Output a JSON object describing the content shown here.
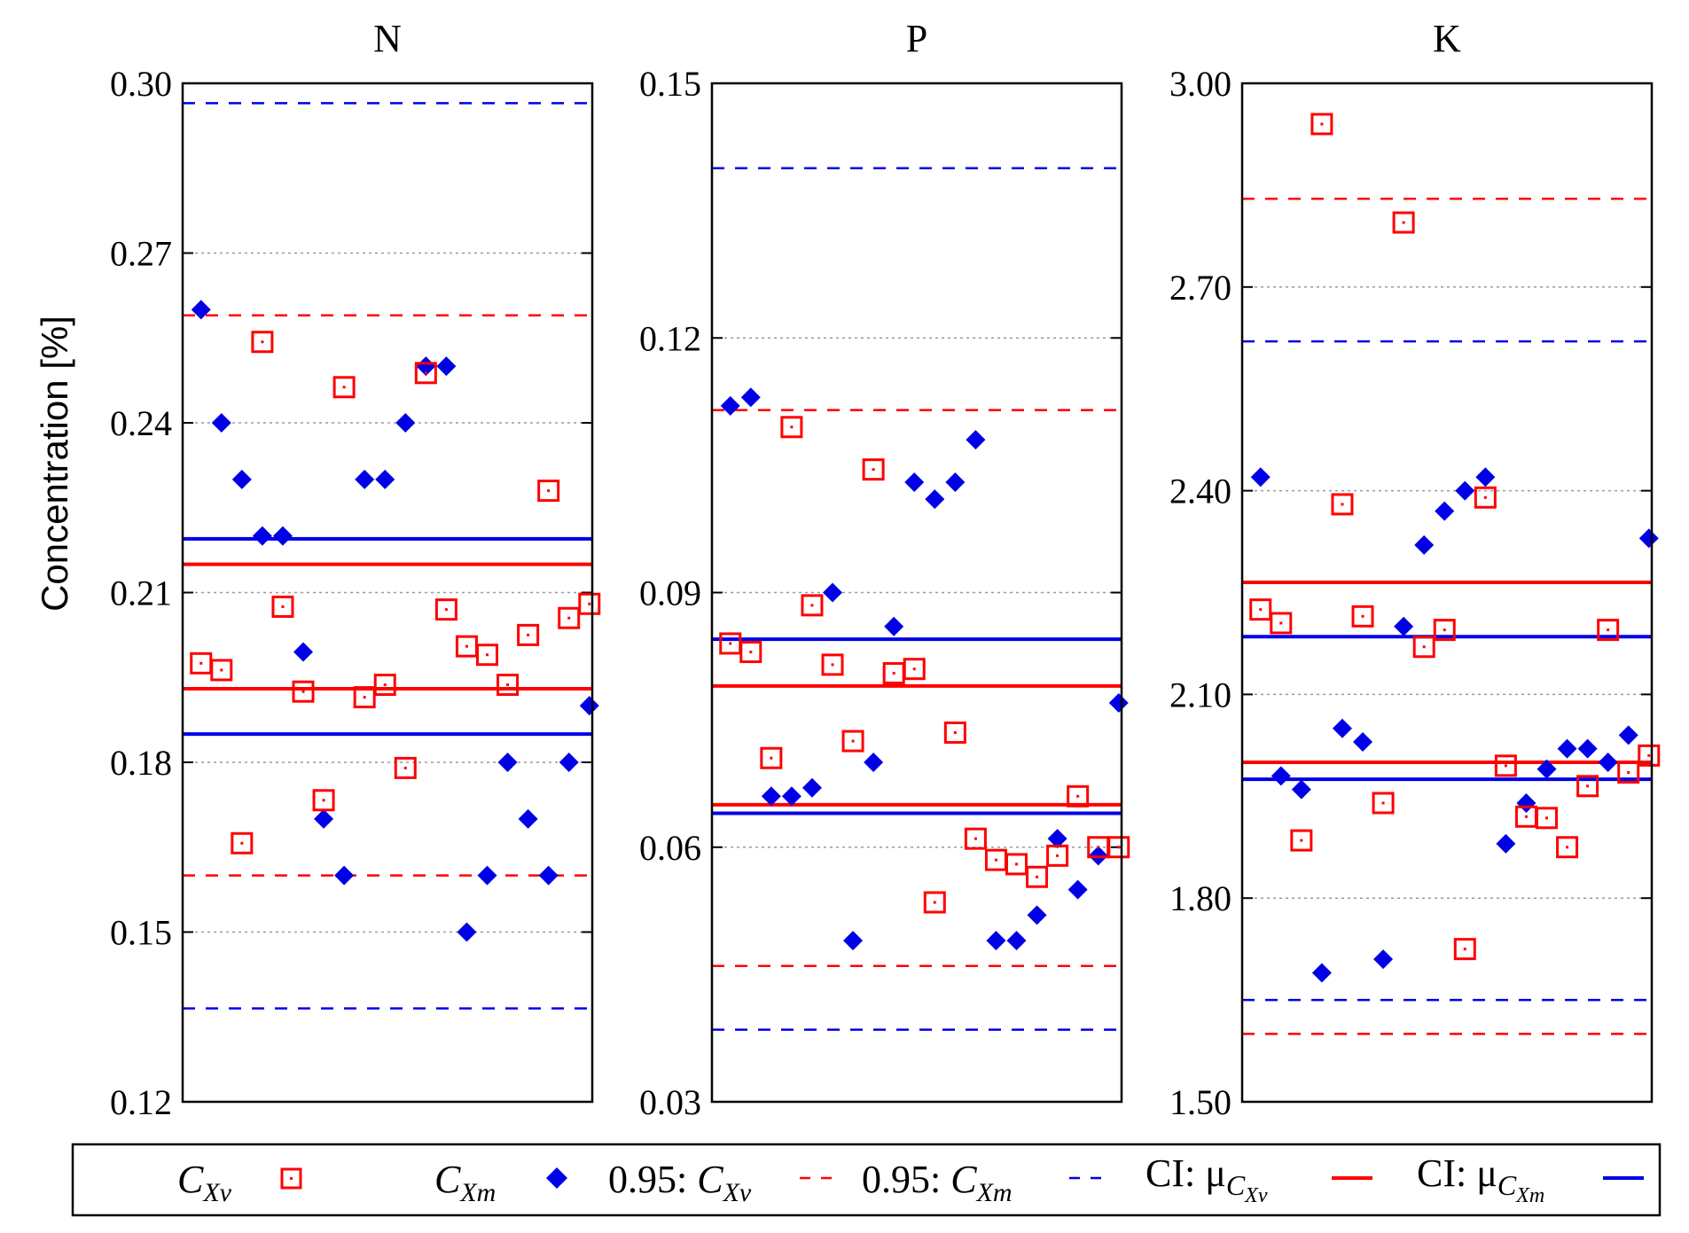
{
  "colors": {
    "red": "#ff0000",
    "blue": "#0000e6",
    "grid": "#9a9a9a",
    "axis": "#000000"
  },
  "ylabel": "Concentration [%]",
  "legend": {
    "items": [
      {
        "id": "cxv",
        "main": "C",
        "sub": "Xv",
        "marker": "square-red"
      },
      {
        "id": "cxm",
        "main": "C",
        "sub": "Xm",
        "marker": "diamond-blue"
      },
      {
        "id": "ci95_xv",
        "prefix": "0.95: ",
        "main": "C",
        "sub": "Xv",
        "marker": "dashed-red"
      },
      {
        "id": "ci95_xm",
        "prefix": "0.95: ",
        "main": "C",
        "sub": "Xm",
        "marker": "dashed-blue"
      },
      {
        "id": "ci_mu_xv",
        "prefix": "CI: ",
        "main": "μ",
        "sub": "C",
        "subsub": "Xv",
        "marker": "solid-red"
      },
      {
        "id": "ci_mu_xm",
        "prefix": "CI: ",
        "main": "μ",
        "sub": "C",
        "subsub": "Xm",
        "marker": "solid-blue"
      }
    ]
  },
  "chart_data": [
    {
      "type": "scatter",
      "title": "N",
      "ylim": [
        0.12,
        0.3
      ],
      "yticks": [
        0.12,
        0.15,
        0.18,
        0.21,
        0.24,
        0.27,
        0.3
      ],
      "ytick_labels": [
        "0.12",
        "0.15",
        "0.18",
        "0.21",
        "0.24",
        "0.27",
        "0.30"
      ],
      "grid": true,
      "n_points": 20,
      "series": [
        {
          "name": "C_Xv",
          "values": [
            0.1975,
            0.1963,
            0.1657,
            0.2543,
            0.2075,
            0.1925,
            0.1733,
            0.2463,
            0.1915,
            0.1937,
            0.179,
            0.2488,
            0.207,
            0.2005,
            0.199,
            0.1937,
            0.2025,
            0.228,
            0.2055,
            0.208
          ]
        },
        {
          "name": "C_Xm",
          "values": [
            0.26,
            0.24,
            0.23,
            0.22,
            0.22,
            0.1995,
            0.17,
            0.16,
            0.23,
            0.23,
            0.24,
            0.25,
            0.25,
            0.15,
            0.16,
            0.18,
            0.17,
            0.16,
            0.18,
            0.19
          ]
        }
      ],
      "lines": {
        "ci95_xv": [
          0.16,
          0.259
        ],
        "ci95_xm": [
          0.1365,
          0.2965
        ],
        "ci_mu_xv": [
          0.193,
          0.215
        ],
        "ci_mu_xm": [
          0.185,
          0.2195
        ]
      }
    },
    {
      "type": "scatter",
      "title": "P",
      "ylim": [
        0.03,
        0.15
      ],
      "yticks": [
        0.03,
        0.06,
        0.09,
        0.12,
        0.15
      ],
      "ytick_labels": [
        "0.03",
        "0.06",
        "0.09",
        "0.12",
        "0.15"
      ],
      "grid": true,
      "n_points": 20,
      "series": [
        {
          "name": "C_Xv",
          "values": [
            0.084,
            0.083,
            0.0705,
            0.1095,
            0.0885,
            0.0815,
            0.0725,
            0.1045,
            0.0805,
            0.081,
            0.0535,
            0.0735,
            0.061,
            0.0585,
            0.058,
            0.0565,
            0.059,
            0.066,
            0.06,
            0.06
          ]
        },
        {
          "name": "C_Xm",
          "values": [
            0.112,
            0.113,
            0.066,
            0.066,
            0.067,
            0.09,
            0.049,
            0.07,
            0.086,
            0.103,
            0.101,
            0.103,
            0.108,
            0.049,
            0.049,
            0.052,
            0.061,
            0.055,
            0.059,
            0.077
          ]
        }
      ],
      "lines": {
        "ci95_xv": [
          0.046,
          0.1115
        ],
        "ci95_xm": [
          0.0385,
          0.14
        ],
        "ci_mu_xv": [
          0.065,
          0.079
        ],
        "ci_mu_xm": [
          0.064,
          0.0845
        ]
      }
    },
    {
      "type": "scatter",
      "title": "K",
      "ylim": [
        1.5,
        3.0
      ],
      "yticks": [
        1.5,
        1.8,
        2.1,
        2.4,
        2.7,
        3.0
      ],
      "ytick_labels": [
        "1.50",
        "1.80",
        "2.10",
        "2.40",
        "2.70",
        "3.00"
      ],
      "grid": true,
      "n_points": 20,
      "series": [
        {
          "name": "C_Xv",
          "values": [
            2.225,
            2.205,
            1.885,
            2.94,
            2.38,
            2.215,
            1.94,
            2.795,
            2.17,
            2.195,
            1.725,
            2.39,
            1.995,
            1.92,
            1.918,
            1.875,
            1.965,
            2.195,
            1.985,
            2.01
          ]
        },
        {
          "name": "C_Xm",
          "values": [
            2.42,
            1.98,
            1.96,
            1.69,
            2.05,
            2.03,
            1.71,
            2.2,
            2.32,
            2.37,
            2.4,
            2.42,
            1.88,
            1.94,
            1.99,
            2.02,
            2.02,
            2.0,
            2.04,
            2.33
          ]
        }
      ],
      "lines": {
        "ci95_xv": [
          1.6,
          2.83
        ],
        "ci95_xm": [
          1.65,
          2.62
        ],
        "ci_mu_xv": [
          2.0,
          2.265
        ],
        "ci_mu_xm": [
          1.975,
          2.185
        ]
      }
    }
  ]
}
